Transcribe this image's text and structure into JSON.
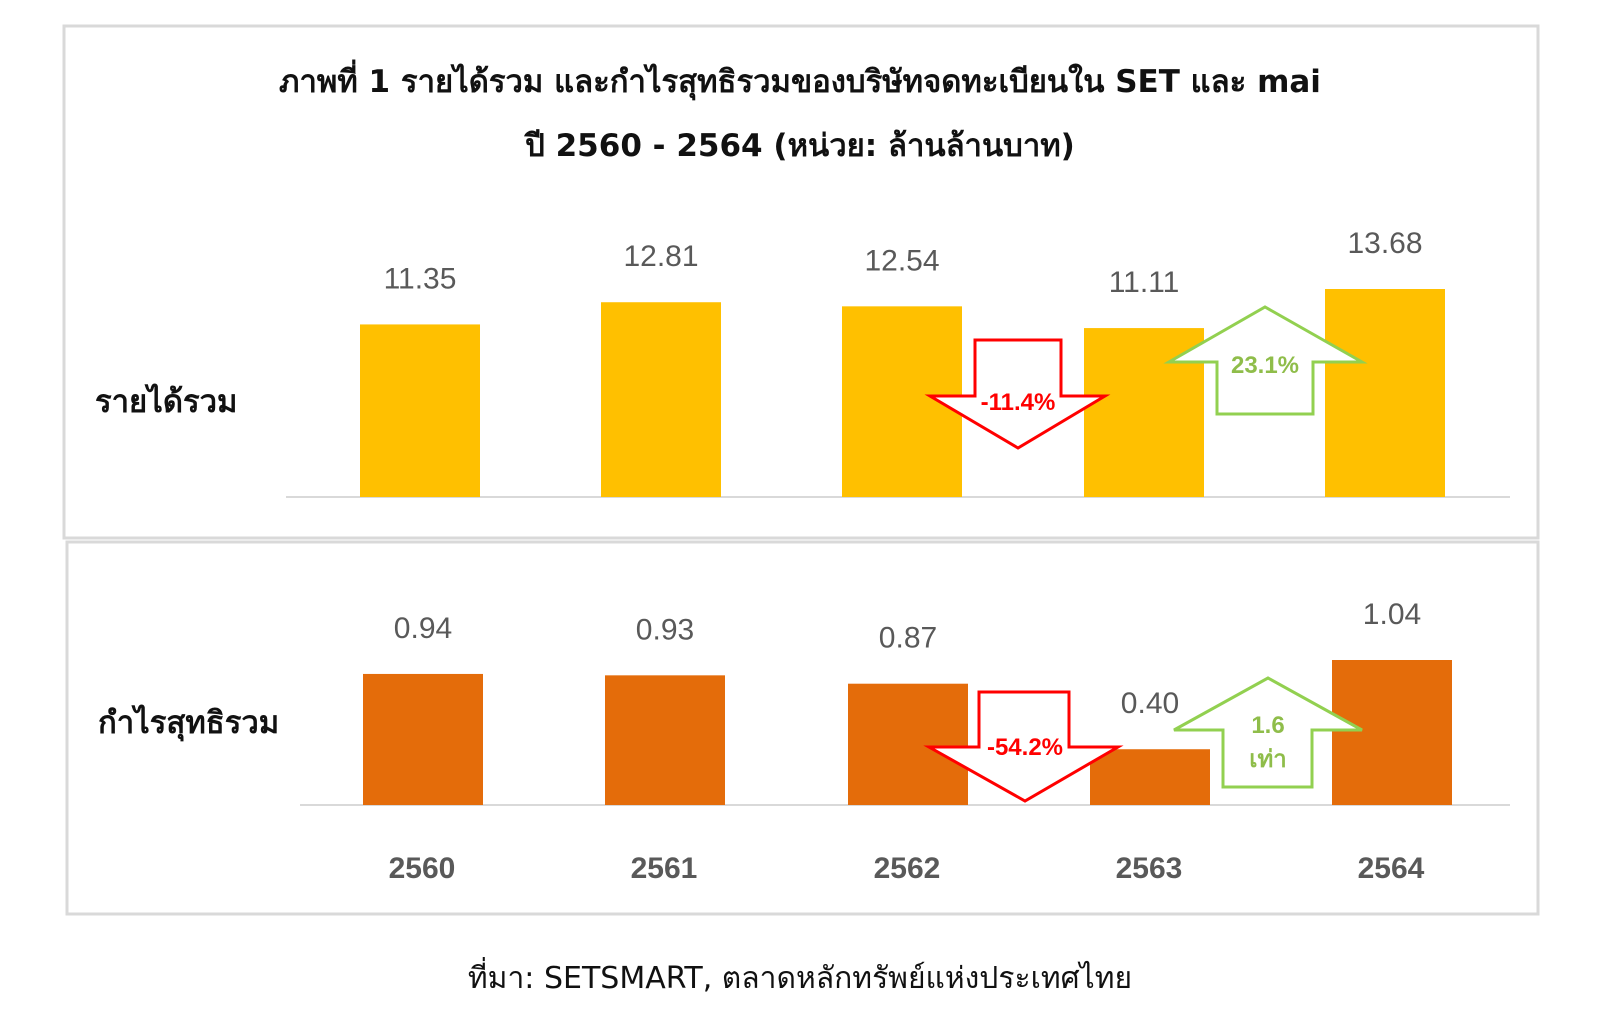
{
  "title_line1": "ภาพที่ 1 รายได้รวม และกำไรสุทธิรวมของบริษัทจดทะเบียนใน SET และ mai",
  "title_line2": "ปี 2560 - 2564 (หน่วย: ล้านล้านบาท)",
  "source": "ที่มา: SETSMART, ตลาดหลักทรัพย์แห่งประเทศไทย",
  "colors": {
    "revenue": "#ffc000",
    "profit": "#e46c0a",
    "decrease": "#ff0000",
    "increase": "#92d050",
    "label": "#595959"
  },
  "chart_data": [
    {
      "type": "bar",
      "row_label": "รายได้รวม",
      "categories": [
        "2560",
        "2561",
        "2562",
        "2563",
        "2564"
      ],
      "values": [
        11.35,
        12.81,
        12.54,
        11.11,
        13.68
      ],
      "value_labels": [
        "11.35",
        "12.81",
        "12.54",
        "11.11",
        "13.68"
      ],
      "annotations": {
        "decrease": "-11.4%",
        "increase": "23.1%"
      }
    },
    {
      "type": "bar",
      "row_label": "กำไรสุทธิรวม",
      "categories": [
        "2560",
        "2561",
        "2562",
        "2563",
        "2564"
      ],
      "values": [
        0.94,
        0.93,
        0.87,
        0.4,
        1.04
      ],
      "value_labels": [
        "0.94",
        "0.93",
        "0.87",
        "0.40",
        "1.04"
      ],
      "annotations": {
        "decrease": "-54.2%",
        "increase_line1": "1.6",
        "increase_line2": "เท่า"
      }
    }
  ]
}
